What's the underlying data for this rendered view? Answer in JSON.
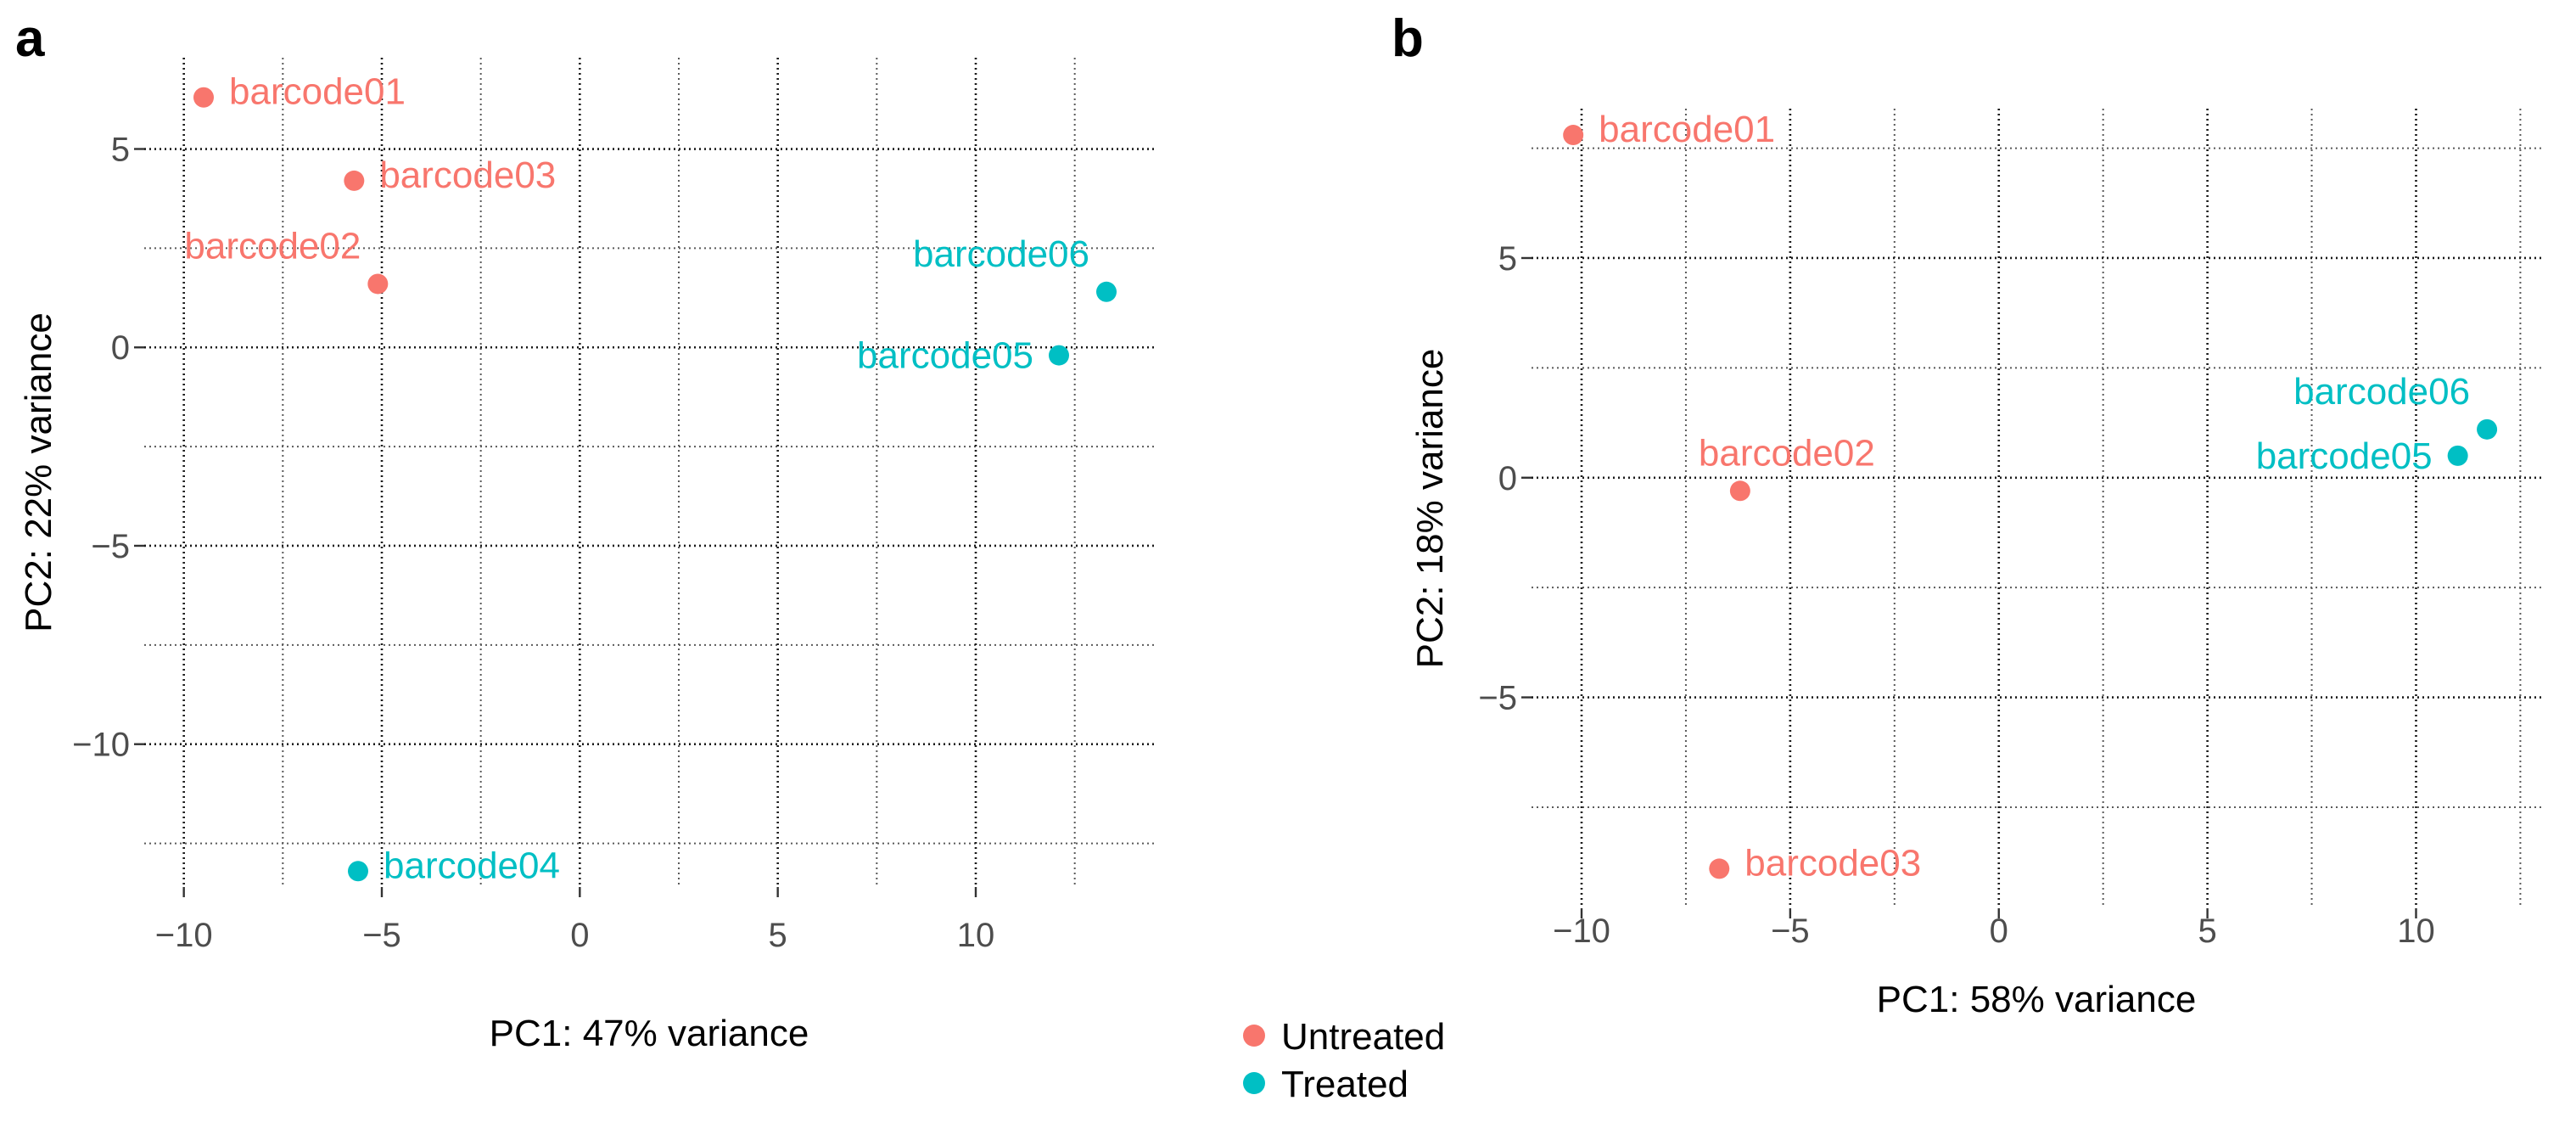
{
  "colors": {
    "untreated": "#F8766D",
    "treated": "#00BFC4"
  },
  "legend": {
    "items": [
      {
        "label": "Untreated",
        "color_key": "untreated"
      },
      {
        "label": "Treated",
        "color_key": "treated"
      }
    ]
  },
  "chart_data": [
    {
      "panel": "a",
      "type": "scatter",
      "xlabel": "PC1: 47% variance",
      "ylabel": "PC2: 22% variance",
      "xlim": [
        -11,
        14.5
      ],
      "ylim": [
        -13.6,
        7.3
      ],
      "xticks": [
        -10,
        -5,
        0,
        5,
        10
      ],
      "yticks": [
        -10,
        -5,
        0,
        5
      ],
      "xtick_labels": [
        "−10",
        "−5",
        "0",
        "5",
        "10"
      ],
      "ytick_labels": [
        "−10",
        "−5",
        "0",
        "5"
      ],
      "grid": true,
      "points": [
        {
          "label": "barcode01",
          "group": "untreated",
          "x": -9.5,
          "y": 6.3,
          "label_pos": "right"
        },
        {
          "label": "barcode03",
          "group": "untreated",
          "x": -5.7,
          "y": 4.2,
          "label_pos": "right"
        },
        {
          "label": "barcode02",
          "group": "untreated",
          "x": -5.1,
          "y": 1.6,
          "label_pos": "above-left"
        },
        {
          "label": "barcode06",
          "group": "treated",
          "x": 13.3,
          "y": 1.4,
          "label_pos": "above-left"
        },
        {
          "label": "barcode05",
          "group": "treated",
          "x": 12.1,
          "y": -0.2,
          "label_pos": "left"
        },
        {
          "label": "barcode04",
          "group": "treated",
          "x": -5.6,
          "y": -13.2,
          "label_pos": "right"
        }
      ]
    },
    {
      "panel": "b",
      "type": "scatter",
      "xlabel": "PC1: 58% variance",
      "ylabel": "PC2: 18% variance",
      "xlim": [
        -11.2,
        13
      ],
      "ylim": [
        -9.8,
        8.4
      ],
      "xticks": [
        -10,
        -5,
        0,
        5,
        10
      ],
      "yticks": [
        -5,
        0,
        5
      ],
      "xtick_labels": [
        "−10",
        "−5",
        "0",
        "5",
        "10"
      ],
      "ytick_labels": [
        "−5",
        "0",
        "5"
      ],
      "grid": true,
      "points": [
        {
          "label": "barcode01",
          "group": "untreated",
          "x": -10.2,
          "y": 7.8,
          "label_pos": "right"
        },
        {
          "label": "barcode02",
          "group": "untreated",
          "x": -6.2,
          "y": -0.3,
          "label_pos": "above"
        },
        {
          "label": "barcode03",
          "group": "untreated",
          "x": -6.7,
          "y": -8.9,
          "label_pos": "right"
        },
        {
          "label": "barcode06",
          "group": "treated",
          "x": 11.7,
          "y": 1.1,
          "label_pos": "above-left"
        },
        {
          "label": "barcode05",
          "group": "treated",
          "x": 11.0,
          "y": 0.5,
          "label_pos": "left"
        }
      ]
    }
  ]
}
